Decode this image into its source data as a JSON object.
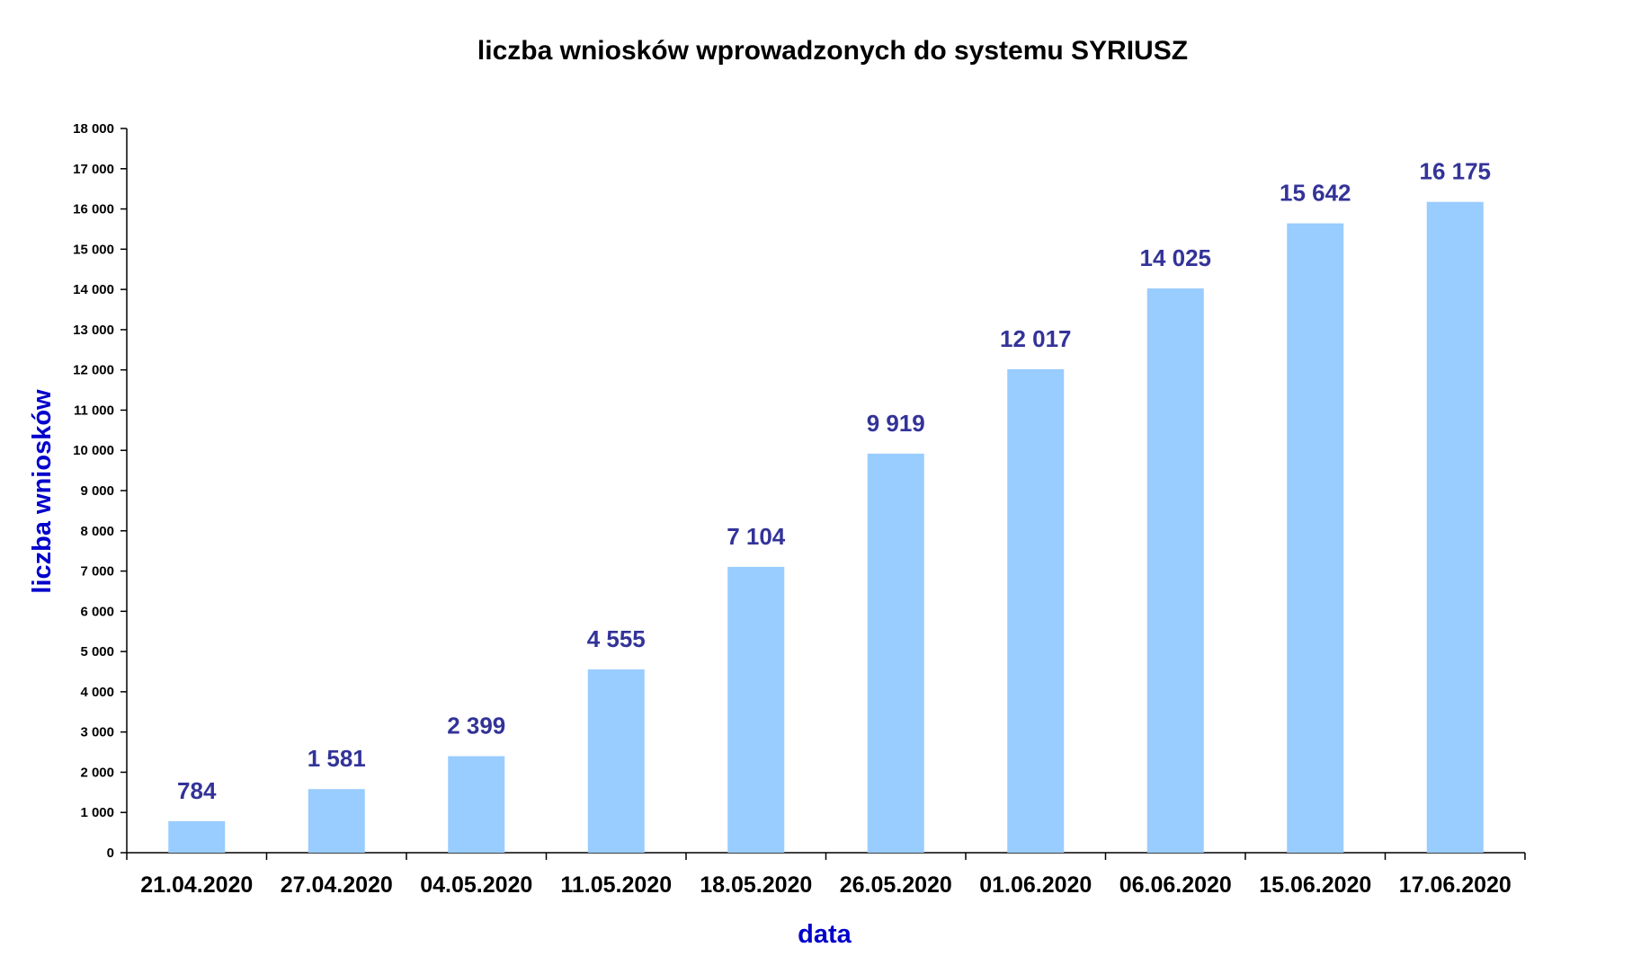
{
  "chart_data": {
    "type": "bar",
    "title": "liczba wniosków wprowadzonych do systemu SYRIUSZ",
    "xlabel": "data",
    "ylabel": "liczba wniosków",
    "categories": [
      "21.04.2020",
      "27.04.2020",
      "04.05.2020",
      "11.05.2020",
      "18.05.2020",
      "26.05.2020",
      "01.06.2020",
      "06.06.2020",
      "15.06.2020",
      "17.06.2020"
    ],
    "values": [
      784,
      1581,
      2399,
      4555,
      7104,
      9919,
      12017,
      14025,
      15642,
      16175
    ],
    "value_labels": [
      "784",
      "1 581",
      "2 399",
      "4 555",
      "7 104",
      "9 919",
      "12 017",
      "14 025",
      "15 642",
      "16 175"
    ],
    "ylim": [
      0,
      18000
    ],
    "yticks": [
      0,
      1000,
      2000,
      3000,
      4000,
      5000,
      6000,
      7000,
      8000,
      9000,
      10000,
      11000,
      12000,
      13000,
      14000,
      15000,
      16000,
      17000,
      18000
    ],
    "ytick_labels": [
      "0",
      "1 000",
      "2 000",
      "3 000",
      "4 000",
      "5 000",
      "6 000",
      "7 000",
      "8 000",
      "9 000",
      "10 000",
      "11 000",
      "12 000",
      "13 000",
      "14 000",
      "15 000",
      "16 000",
      "17 000",
      "18 000"
    ],
    "grid": false,
    "legend": "none",
    "colors": {
      "bar": "#99ccff",
      "data_label": "#333399",
      "axis_title": "#0000cc",
      "axis_line": "#000000"
    }
  }
}
